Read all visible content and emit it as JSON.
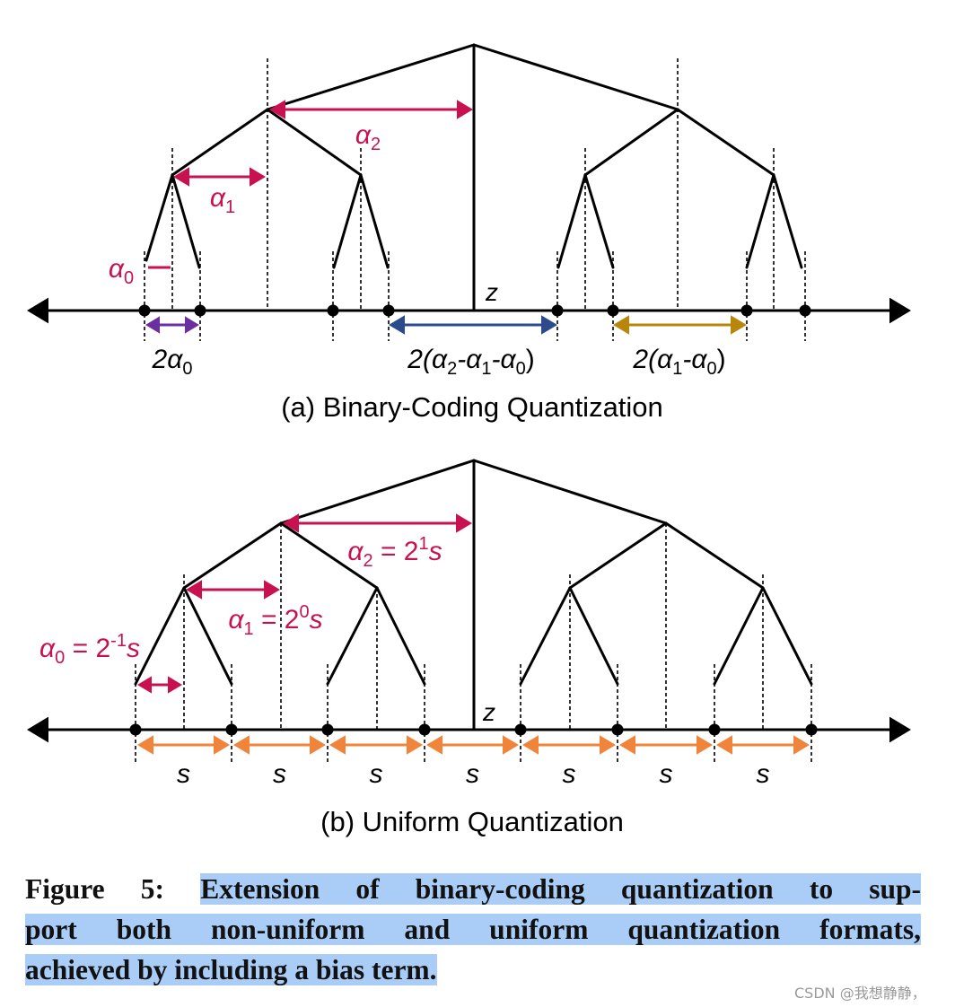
{
  "panel_a": {
    "caption": "(a) Binary-Coding Quantization",
    "z": "z",
    "labels": [
      {
        "parts": [
          {
            "t": "α"
          },
          {
            "t": "2",
            "pos": "sub"
          }
        ]
      },
      {
        "parts": [
          {
            "t": "α"
          },
          {
            "t": "1",
            "pos": "sub"
          }
        ]
      },
      {
        "parts": [
          {
            "t": "α"
          },
          {
            "t": "0",
            "pos": "sub"
          }
        ]
      },
      {
        "parts": [
          {
            "t": "2α"
          },
          {
            "t": "0",
            "pos": "sub"
          }
        ]
      },
      {
        "parts": [
          {
            "t": "2(α"
          },
          {
            "t": "2",
            "pos": "sub"
          },
          {
            "t": "-α"
          },
          {
            "t": "1",
            "pos": "sub"
          },
          {
            "t": "-α"
          },
          {
            "t": "0",
            "pos": "sub"
          },
          {
            "t": ")"
          }
        ]
      },
      {
        "parts": [
          {
            "t": "2(α"
          },
          {
            "t": "1",
            "pos": "sub"
          },
          {
            "t": "-α"
          },
          {
            "t": "0",
            "pos": "sub"
          },
          {
            "t": ")"
          }
        ]
      }
    ]
  },
  "panel_b": {
    "caption": "(b) Uniform Quantization",
    "z": "z",
    "labels": [
      {
        "parts": [
          {
            "t": "α"
          },
          {
            "t": "2",
            "pos": "sub"
          },
          {
            "t": " = 2"
          },
          {
            "t": "1",
            "pos": "sup"
          },
          {
            "t": "s"
          }
        ]
      },
      {
        "parts": [
          {
            "t": "α"
          },
          {
            "t": "1",
            "pos": "sub"
          },
          {
            "t": " = 2"
          },
          {
            "t": "0",
            "pos": "sup"
          },
          {
            "t": "s"
          }
        ]
      },
      {
        "parts": [
          {
            "t": "α"
          },
          {
            "t": "0",
            "pos": "sub"
          },
          {
            "t": " = 2"
          },
          {
            "t": "-1",
            "pos": "sup"
          },
          {
            "t": "s"
          }
        ]
      }
    ],
    "step_labels": [
      "s",
      "s",
      "s",
      "s",
      "s",
      "s",
      "s"
    ]
  },
  "caption": {
    "label": "Figure 5:",
    "lines": [
      "Extension of binary-coding quantization to sup-",
      "port both non-uniform and uniform quantization formats,",
      "achieved by including a bias term."
    ]
  },
  "watermark": "CSDN @我想静静，"
}
